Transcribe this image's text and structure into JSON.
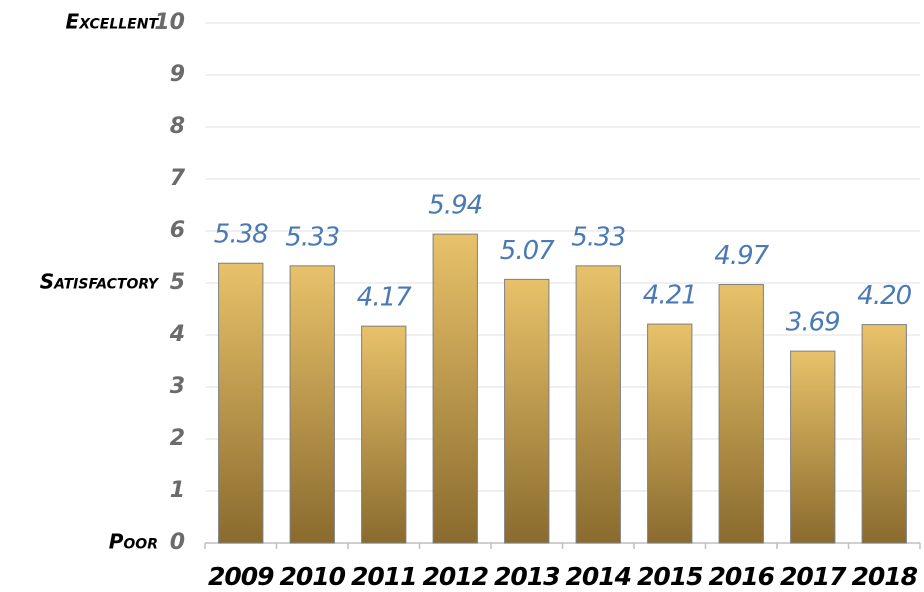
{
  "chart_data": {
    "type": "bar",
    "categories": [
      "2009",
      "2010",
      "2011",
      "2012",
      "2013",
      "2014",
      "2015",
      "2016",
      "2017",
      "2018"
    ],
    "values": [
      5.38,
      5.33,
      4.17,
      5.94,
      5.07,
      5.33,
      4.21,
      4.97,
      3.69,
      4.2
    ],
    "value_labels": [
      "5.38",
      "5.33",
      "4.17",
      "5.94",
      "5.07",
      "5.33",
      "4.21",
      "4.97",
      "3.69",
      "4.20"
    ],
    "gradient": [
      "#e8c26a",
      "#8a6b2e"
    ],
    "ylim": [
      0,
      10
    ],
    "yticks": [
      0,
      1,
      2,
      3,
      4,
      5,
      6,
      7,
      8,
      9,
      10
    ],
    "grid": true,
    "y_annotations": [
      {
        "value": 10,
        "label": "Excellent"
      },
      {
        "value": 5,
        "label": "Satisfactory"
      },
      {
        "value": 0,
        "label": "Poor"
      }
    ]
  }
}
